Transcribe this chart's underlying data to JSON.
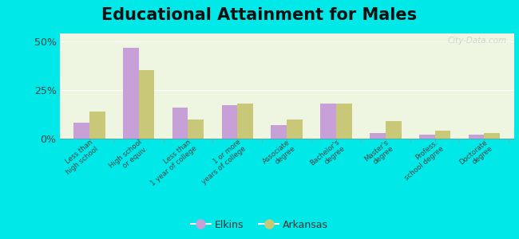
{
  "title": "Educational Attainment for Males",
  "categories": [
    "Less than\nhigh school",
    "High school\nor equiv.",
    "Less than\n1 year of college",
    "1 or more\nyears of college",
    "Associate\ndegree",
    "Bachelor's\ndegree",
    "Master's\ndegree",
    "Profess.\nschool degree",
    "Doctorate\ndegree"
  ],
  "elkins": [
    8.0,
    46.5,
    16.0,
    17.0,
    7.0,
    18.0,
    3.0,
    2.0,
    2.0
  ],
  "arkansas": [
    14.0,
    35.0,
    10.0,
    18.0,
    10.0,
    18.0,
    9.0,
    4.0,
    3.0
  ],
  "elkins_color": "#c8a0d8",
  "arkansas_color": "#c8c878",
  "background_outer": "#00e8e8",
  "background_inner": "#eef5e0",
  "yticks": [
    0,
    25,
    50
  ],
  "ylim": [
    0,
    54
  ],
  "title_fontsize": 15,
  "legend_labels": [
    "Elkins",
    "Arkansas"
  ],
  "watermark": "City-Data.com"
}
